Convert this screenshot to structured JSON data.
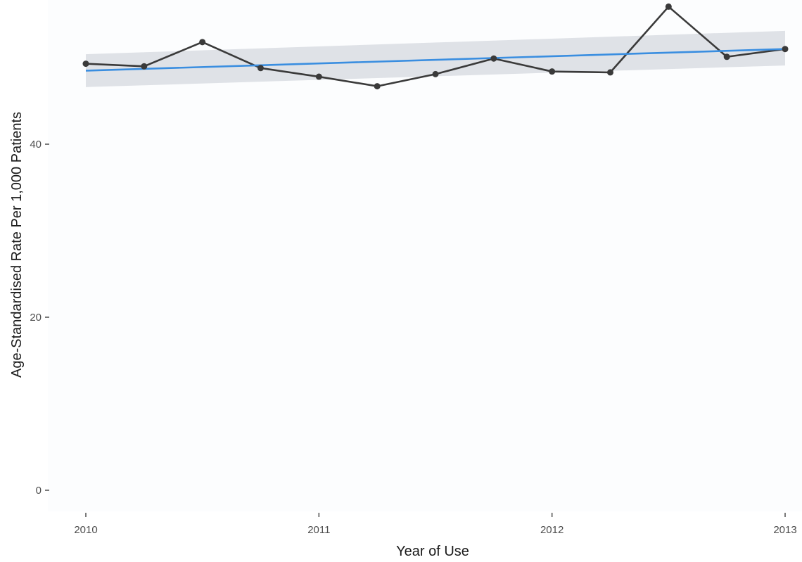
{
  "chart_data": {
    "type": "line",
    "title": "",
    "xlabel": "Year of Use",
    "ylabel": "Age-Standardised Rate Per 1,000 Patients",
    "x_ticks": [
      "2010",
      "2011",
      "2012",
      "2013"
    ],
    "y_ticks": [
      "0",
      "20",
      "40"
    ],
    "xlim": [
      2010,
      2013
    ],
    "ylim": [
      0,
      53
    ],
    "grid": false,
    "legend": "none",
    "series": [
      {
        "x": [
          2010.0,
          2010.25,
          2010.5,
          2010.75,
          2011.0,
          2011.25,
          2011.5,
          2011.75,
          2012.0,
          2012.25,
          2012.5,
          2012.75,
          2013.0
        ],
        "y": [
          49.3,
          49.0,
          51.8,
          48.8,
          47.8,
          46.7,
          48.1,
          49.9,
          48.4,
          48.3,
          55.9,
          50.1,
          51.0
        ]
      }
    ],
    "trend": {
      "type": "linear",
      "x": [
        2010.0,
        2013.0
      ],
      "y": [
        48.5,
        51.0
      ],
      "ci_lower": [
        46.6,
        49.1
      ],
      "ci_upper": [
        50.4,
        53.1
      ]
    },
    "colors": {
      "series": "#3a3a3a",
      "marker": "#3a3a3a",
      "trend": "#3a8ee0",
      "ci_band": "#d9dde3",
      "panel": "#fcfdfe"
    }
  }
}
